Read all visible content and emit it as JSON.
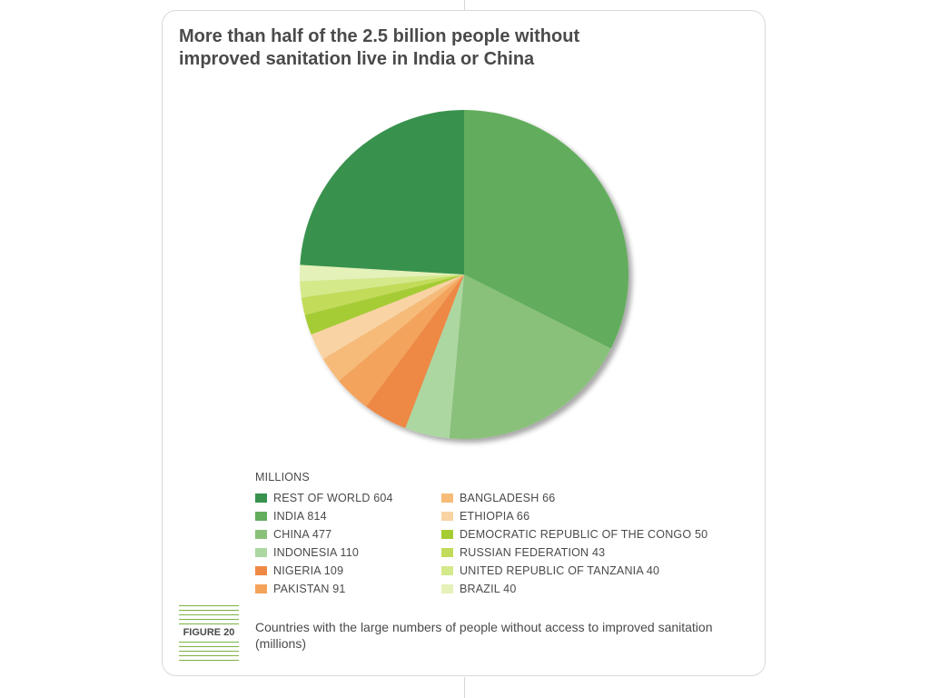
{
  "title": "More than half of the 2.5 billion people without improved sanitation live in India or China",
  "legend_heading": "MILLIONS",
  "figure_label": "FIGURE 20",
  "caption": "Countries with the large numbers of people without access to improved sanitation (millions)",
  "chart_data": {
    "type": "pie",
    "title": "More than half of the 2.5 billion people without improved sanitation live in India or China",
    "unit": "MILLIONS",
    "start_angle_deg": 0,
    "direction": "clockwise",
    "slices": [
      {
        "name": "INDIA",
        "value": 814,
        "label": "INDIA 814",
        "color": "#62ad5d"
      },
      {
        "name": "CHINA",
        "value": 477,
        "label": "CHINA 477",
        "color": "#89c17a"
      },
      {
        "name": "INDONESIA",
        "value": 110,
        "label": "INDONESIA 110",
        "color": "#acd7a1"
      },
      {
        "name": "NIGERIA",
        "value": 109,
        "label": "NIGERIA 109",
        "color": "#ee8844"
      },
      {
        "name": "PAKISTAN",
        "value": 91,
        "label": "PAKISTAN 91",
        "color": "#f4a35b"
      },
      {
        "name": "BANGLADESH",
        "value": 66,
        "label": "BANGLADESH 66",
        "color": "#f6bb79"
      },
      {
        "name": "ETHIOPIA",
        "value": 66,
        "label": "ETHIOPIA 66",
        "color": "#f9d3a3"
      },
      {
        "name": "DEMOCRATIC REPUBLIC OF THE CONGO",
        "value": 50,
        "label": "DEMOCRATIC REPUBLIC OF THE CONGO 50",
        "color": "#a6cc34"
      },
      {
        "name": "RUSSIAN FEDERATION",
        "value": 43,
        "label": "RUSSIAN FEDERATION 43",
        "color": "#c2dc5a"
      },
      {
        "name": "UNITED REPUBLIC OF TANZANIA",
        "value": 40,
        "label": "UNITED REPUBLIC OF TANZANIA 40",
        "color": "#d4e98a"
      },
      {
        "name": "BRAZIL",
        "value": 40,
        "label": "BRAZIL 40",
        "color": "#e4f1b8"
      },
      {
        "name": "REST OF WORLD",
        "value": 604,
        "label": "REST OF WORLD 604",
        "color": "#38924d"
      }
    ],
    "legend_left": [
      {
        "label": "REST OF WORLD 604",
        "color": "#38924d"
      },
      {
        "label": "INDIA 814",
        "color": "#62ad5d"
      },
      {
        "label": "CHINA 477",
        "color": "#89c17a"
      },
      {
        "label": "INDONESIA 110",
        "color": "#acd7a1"
      },
      {
        "label": "NIGERIA 109",
        "color": "#ee8844"
      },
      {
        "label": "PAKISTAN 91",
        "color": "#f4a35b"
      }
    ],
    "legend_right": [
      {
        "label": "BANGLADESH 66",
        "color": "#f6bb79"
      },
      {
        "label": "ETHIOPIA 66",
        "color": "#f9d3a3"
      },
      {
        "label": "DEMOCRATIC REPUBLIC OF THE CONGO 50",
        "color": "#a6cc34"
      },
      {
        "label": "RUSSIAN FEDERATION 43",
        "color": "#c2dc5a"
      },
      {
        "label": "UNITED REPUBLIC OF TANZANIA 40",
        "color": "#d4e98a"
      },
      {
        "label": "BRAZIL 40",
        "color": "#e4f1b8"
      }
    ]
  }
}
